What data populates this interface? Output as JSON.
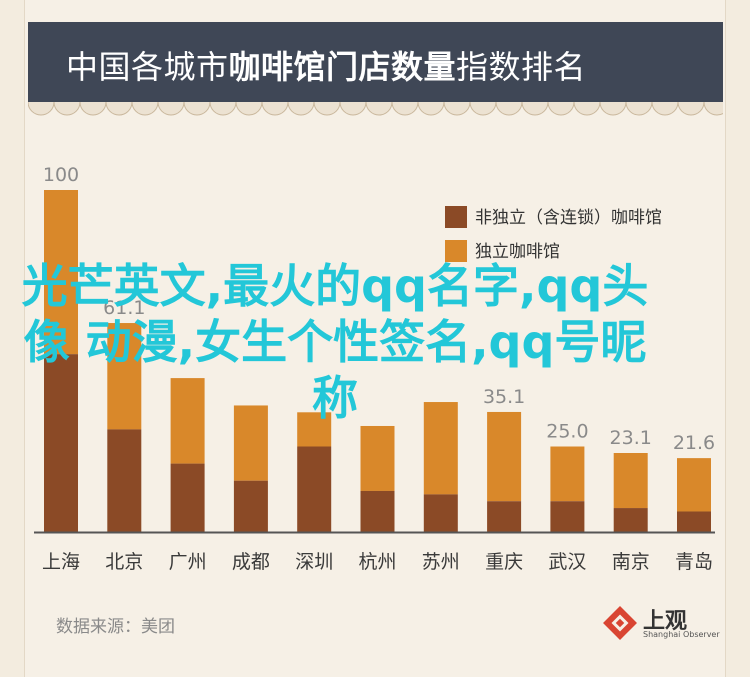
{
  "title_light": "中国各城市",
  "title_bold": "咖啡馆门店数量",
  "title_tail": "指数排名",
  "overlay_text": "光芒英文,最火的qq名字,qq头像 动漫,女生个性签名,qq号昵称",
  "source": "数据来源：美团",
  "brand": {
    "name": "上观",
    "sub": "Shanghai Observer"
  },
  "colors": {
    "dark": "#8b4a26",
    "light": "#d9882a",
    "background": "#f6f0e6",
    "header": "#3f4756",
    "overlay": "#23c7d8"
  },
  "chart_data": {
    "type": "bar",
    "stacked": true,
    "categories": [
      "上海",
      "北京",
      "广州",
      "成都",
      "深圳",
      "杭州",
      "苏州",
      "重庆",
      "武汉",
      "南京",
      "青岛"
    ],
    "totals": [
      100,
      61.1,
      45.0,
      37.0,
      35.0,
      31.0,
      38.0,
      35.1,
      25.0,
      23.1,
      21.6
    ],
    "total_labels": [
      "100",
      "61.1",
      "",
      "",
      "",
      "",
      "",
      "35.1",
      "25.0",
      "23.1",
      "21.6"
    ],
    "series": [
      {
        "name": "非独立（含连锁）咖啡馆",
        "values": [
          52,
          30,
          20,
          15,
          25,
          12,
          11,
          9,
          9,
          7,
          6
        ]
      },
      {
        "name": "独立咖啡馆",
        "values": [
          48,
          31.1,
          25,
          22,
          10,
          19,
          27,
          26.1,
          16,
          16.1,
          15.6
        ]
      }
    ],
    "ylim": [
      0,
      100
    ],
    "legend": "top-right",
    "grid": false
  }
}
